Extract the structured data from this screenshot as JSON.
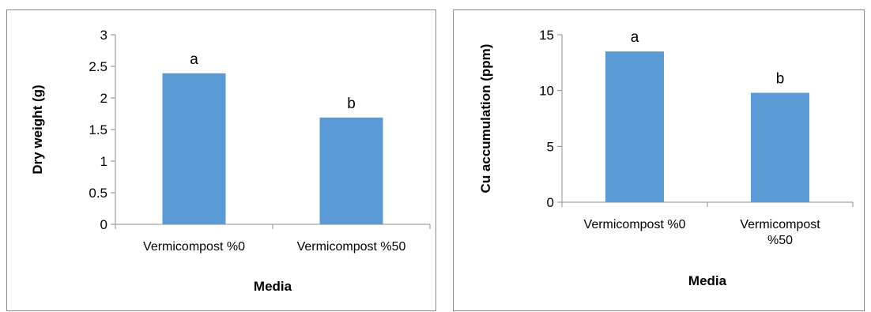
{
  "chart_data": [
    {
      "type": "bar",
      "categories": [
        "Vermicompost %0",
        "Vermicompost %50"
      ],
      "values": [
        2.39,
        1.69
      ],
      "data_labels": [
        "a",
        "b"
      ],
      "title": "",
      "xlabel": "Media",
      "ylabel": "Dry weight (g)",
      "ylim": [
        0,
        3
      ],
      "yticks": [
        "0",
        "0.5",
        "1",
        "1.5",
        "2",
        "2.5",
        "3"
      ],
      "grid": false,
      "bar_color": "#5b9bd5"
    },
    {
      "type": "bar",
      "categories": [
        "Vermicompost %0",
        "Vermicompost %50"
      ],
      "category_lines": [
        [
          "Vermicompost %0"
        ],
        [
          "Vermicompost",
          "%50"
        ]
      ],
      "values": [
        13.5,
        9.8
      ],
      "data_labels": [
        "a",
        "b"
      ],
      "title": "",
      "xlabel": "Media",
      "ylabel": "Cu accumulation  (ppm)",
      "ylim": [
        0,
        15
      ],
      "yticks": [
        "0",
        "5",
        "10",
        "15"
      ],
      "grid": false,
      "bar_color": "#5b9bd5"
    }
  ]
}
